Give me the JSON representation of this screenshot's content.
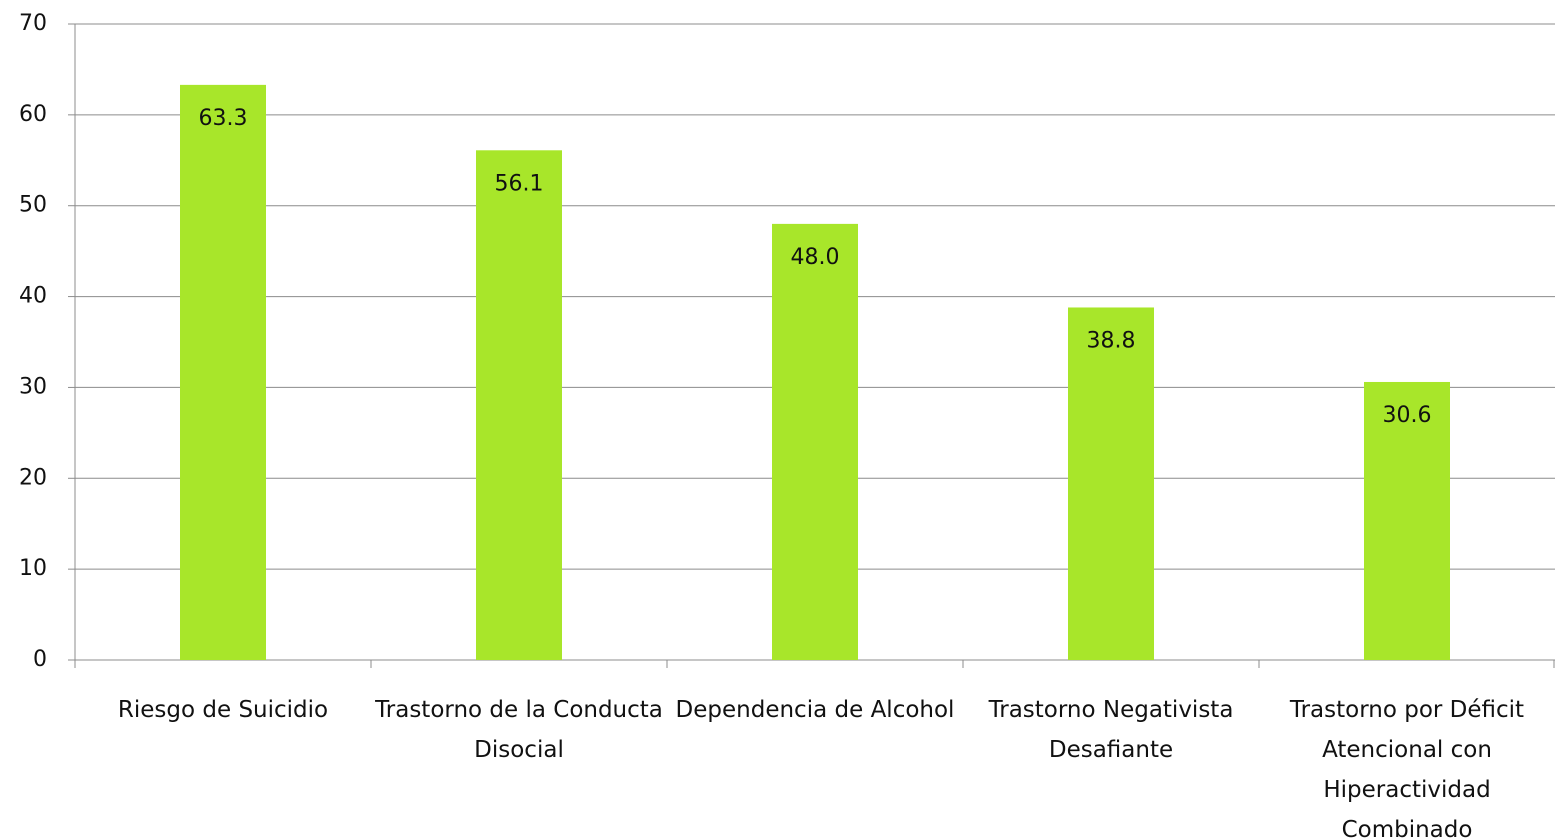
{
  "chart_data": {
    "type": "bar",
    "categories": [
      "Riesgo de Suicidio",
      "Trastorno de la Conducta Disocial",
      "Dependencia de Alcohol",
      "Trastorno Negativista Desafiante",
      "Trastorno por Déficit Atencional con Hiperactividad Combinado"
    ],
    "values": [
      63.3,
      56.1,
      48,
      38.8,
      30.6
    ],
    "value_labels": [
      "63.3",
      "56.1",
      "48.0",
      "38.8",
      "30.6"
    ],
    "color": "#a8e62a",
    "ylim": [
      0,
      70
    ],
    "yticks": [
      0,
      10,
      20,
      30,
      40,
      50,
      60,
      70
    ],
    "grid": true
  }
}
